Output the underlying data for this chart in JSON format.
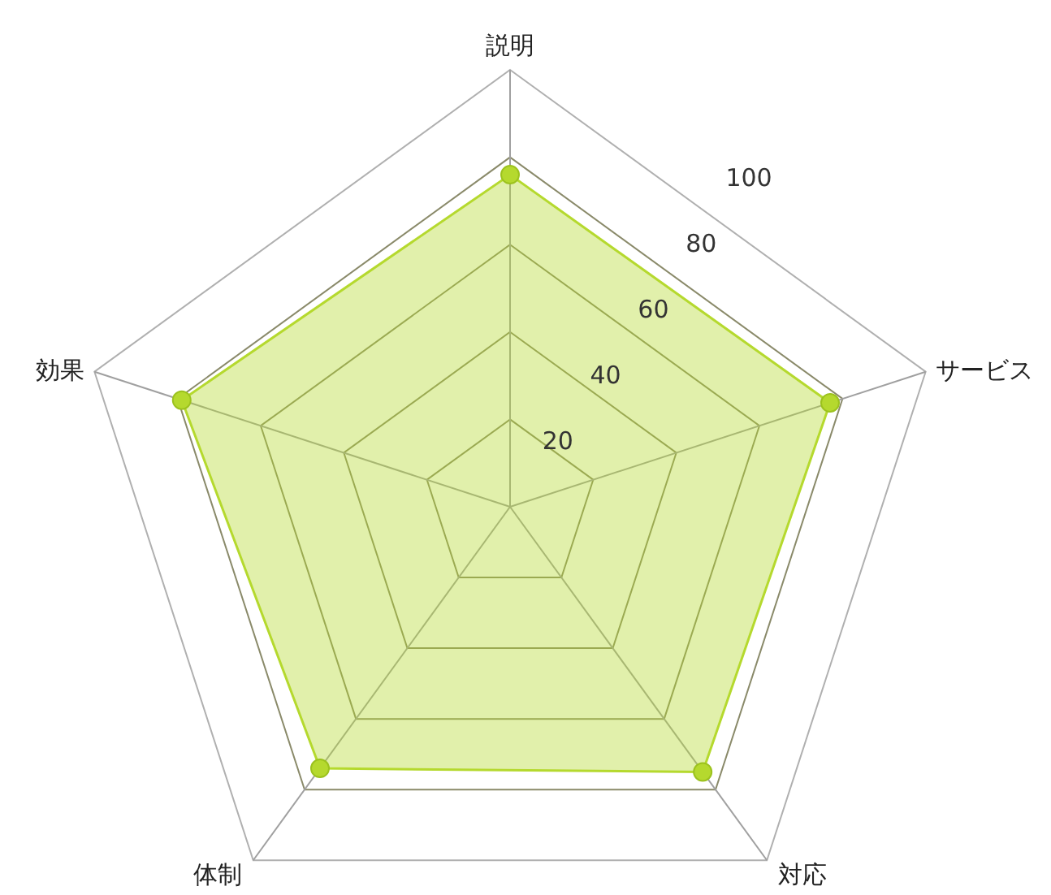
{
  "chart_data": {
    "type": "radar",
    "categories": [
      "説明",
      "サービス",
      "対応",
      "体制",
      "効果"
    ],
    "series": [
      {
        "color": "#b5d92e",
        "values": [
          76,
          77,
          75,
          74,
          79
        ]
      }
    ],
    "ylim": [
      0,
      100
    ],
    "yticks": [
      20,
      40,
      60,
      80,
      100
    ],
    "marker": "circle",
    "grid": true
  }
}
